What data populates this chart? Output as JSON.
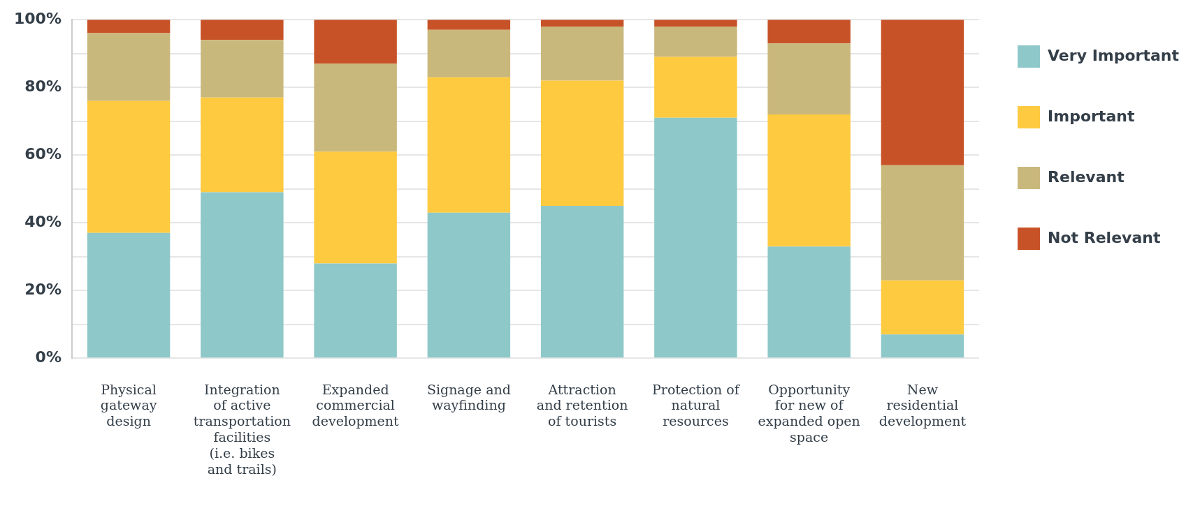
{
  "chart_data": {
    "type": "bar",
    "stacked": true,
    "categories": [
      "Physical gateway design",
      "Integration of active transportation facilities (i.e. bikes and trails)",
      "Expanded commercial development",
      "Signage and wayfinding",
      "Attraction and retention of tourists",
      "Protection of natural resources",
      "Opportunity for new of expanded open space",
      "New residential development"
    ],
    "series": [
      {
        "name": "Very Important",
        "color": "#8ec8c9",
        "values": [
          37,
          49,
          28,
          43,
          45,
          71,
          33,
          7
        ]
      },
      {
        "name": "Important",
        "color": "#fdca40",
        "values": [
          39,
          28,
          33,
          40,
          37,
          18,
          39,
          16
        ]
      },
      {
        "name": "Relevant",
        "color": "#c9b87b",
        "values": [
          20,
          17,
          26,
          14,
          16,
          9,
          21,
          34
        ]
      },
      {
        "name": "Not Relevant",
        "color": "#c85228",
        "values": [
          4,
          6,
          13,
          3,
          2,
          2,
          7,
          43
        ]
      }
    ],
    "ylim": [
      0,
      100
    ],
    "yticks": [
      {
        "value": 0,
        "label": "0%"
      },
      {
        "value": 10,
        "label": null
      },
      {
        "value": 20,
        "label": "20%"
      },
      {
        "value": 30,
        "label": null
      },
      {
        "value": 40,
        "label": "40%"
      },
      {
        "value": 50,
        "label": null
      },
      {
        "value": 60,
        "label": "60%"
      },
      {
        "value": 70,
        "label": null
      },
      {
        "value": 80,
        "label": "80%"
      },
      {
        "value": 90,
        "label": null
      },
      {
        "value": 100,
        "label": "100%"
      }
    ],
    "grid": "y",
    "legend": "top right"
  }
}
